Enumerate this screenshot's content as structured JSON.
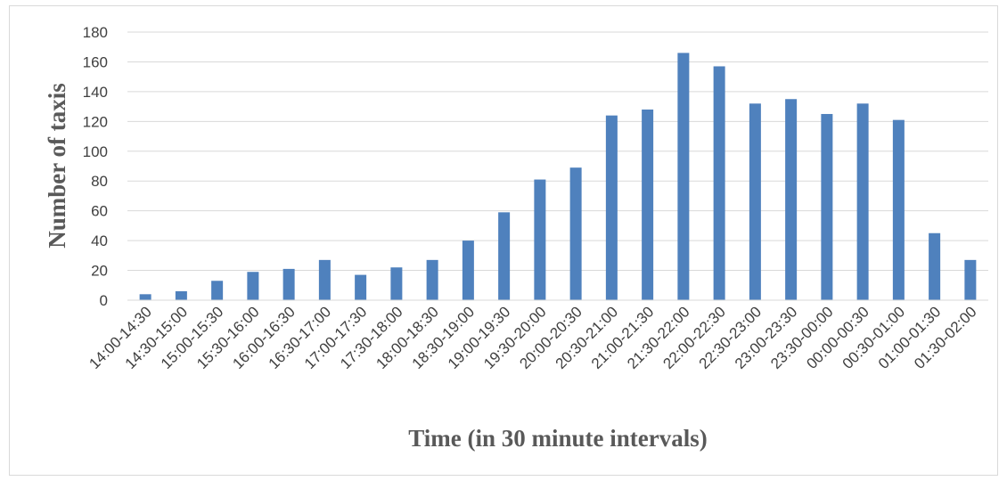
{
  "chart_data": {
    "type": "bar",
    "title": "",
    "xlabel": "Time (in 30 minute intervals)",
    "ylabel": "Number of taxis",
    "ylim": [
      0,
      180
    ],
    "yticks": [
      "0",
      "20",
      "40",
      "60",
      "80",
      "100",
      "120",
      "140",
      "160",
      "180"
    ],
    "grid": true,
    "legend": "none",
    "bar_color": "#4f81bd",
    "categories": [
      "14:00-14:30",
      "14:30-15:00",
      "15:00-15:30",
      "15:30-16:00",
      "16:00-16:30",
      "16:30-17:00",
      "17:00-17:30",
      "17:30-18:00",
      "18:00-18:30",
      "18:30-19:00",
      "19:00-19:30",
      "19:30-20:00",
      "20:00-20:30",
      "20:30-21:00",
      "21:00-21:30",
      "21:30-22:00",
      "22:00-22:30",
      "22:30-23:00",
      "23:00-23:30",
      "23:30-00:00",
      "00:00-00:30",
      "00:30-01:00",
      "01:00-01:30",
      "01:30-02:00"
    ],
    "values": [
      4,
      6,
      13,
      19,
      21,
      27,
      17,
      22,
      27,
      40,
      59,
      81,
      89,
      124,
      128,
      166,
      157,
      132,
      135,
      125,
      132,
      121,
      45,
      27
    ]
  }
}
